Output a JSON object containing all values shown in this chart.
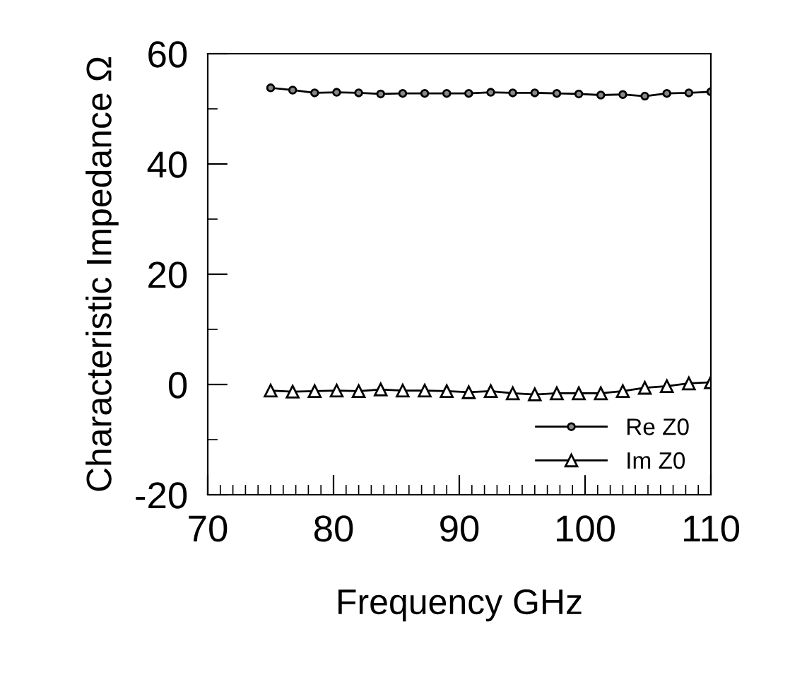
{
  "chart_data": {
    "type": "line",
    "xlabel": "Frequency GHz",
    "ylabel": "Characteristic Impedance Ω",
    "x": [
      75,
      76.75,
      78.5,
      80.25,
      82,
      83.75,
      85.5,
      87.25,
      89,
      90.75,
      92.5,
      94.25,
      96,
      97.75,
      99.5,
      101.25,
      103,
      104.75,
      106.5,
      108.25,
      110
    ],
    "series": [
      {
        "name": "Re Z0",
        "color": "#000000",
        "marker": "circle",
        "values": [
          53.8,
          53.4,
          52.9,
          53.0,
          52.9,
          52.7,
          52.8,
          52.8,
          52.8,
          52.8,
          53.0,
          52.9,
          52.9,
          52.8,
          52.7,
          52.5,
          52.6,
          52.3,
          52.8,
          52.9,
          53.1
        ]
      },
      {
        "name": "Im Z0",
        "color": "#000000",
        "marker": "triangle",
        "values": [
          -1.1,
          -1.3,
          -1.2,
          -1.1,
          -1.2,
          -0.9,
          -1.1,
          -1.1,
          -1.2,
          -1.4,
          -1.2,
          -1.6,
          -1.8,
          -1.6,
          -1.6,
          -1.6,
          -1.2,
          -0.6,
          -0.3,
          0.2,
          0.4
        ]
      }
    ],
    "xlim": [
      70,
      110
    ],
    "xticks": [
      70,
      80,
      90,
      100,
      110
    ],
    "ylim": [
      -20,
      60
    ],
    "yticks": [
      -20,
      0,
      20,
      40,
      60
    ],
    "legend": "bottom right",
    "grid": false
  }
}
